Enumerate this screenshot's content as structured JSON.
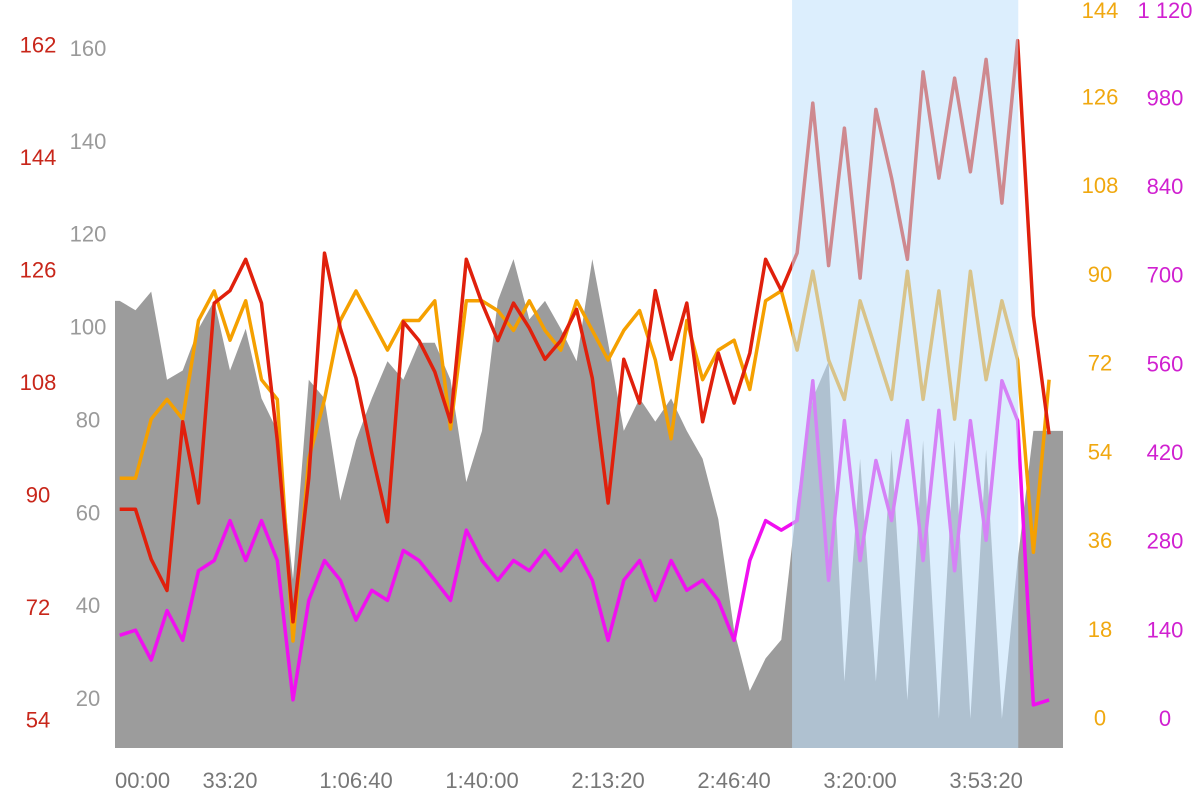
{
  "chart_data": {
    "type": "line",
    "x": [
      250,
      500,
      750,
      1000,
      1250,
      1500,
      1750,
      2000,
      2250,
      2500,
      2750,
      3000,
      3250,
      3500,
      3750,
      4000,
      4250,
      4500,
      4750,
      5000,
      5250,
      5500,
      5750,
      6000,
      6250,
      6500,
      6750,
      7000,
      7250,
      7500,
      7750,
      8000,
      8250,
      8500,
      8750,
      9000,
      9250,
      9500,
      9750,
      10000,
      10250,
      10500,
      10750,
      11000,
      11250,
      11500,
      11750,
      12000,
      12250,
      12500,
      12750,
      13000,
      13250,
      13500,
      13750,
      14000,
      14250,
      14500,
      14750,
      15000
    ],
    "xlim": [
      175,
      15220
    ],
    "xticks": [
      {
        "value": 0,
        "label": "00:00"
      },
      {
        "value": 2000,
        "label": "33:20"
      },
      {
        "value": 4000,
        "label": "1:06:40"
      },
      {
        "value": 6000,
        "label": "1:40:00"
      },
      {
        "value": 8000,
        "label": "2:13:20"
      },
      {
        "value": 10000,
        "label": "2:46:40"
      },
      {
        "value": 12000,
        "label": "3:20:00"
      },
      {
        "value": 14000,
        "label": "3:53:20"
      }
    ],
    "highlight": [
      10920,
      14510
    ],
    "axes": [
      {
        "ylim": [
          49.8,
          169.5
        ],
        "yticks": [
          54,
          72,
          90,
          108,
          126,
          144,
          162
        ],
        "color": "#c8261a"
      },
      {
        "ylim": [
          9.7,
          170.8
        ],
        "yticks": [
          20,
          40,
          60,
          80,
          100,
          120,
          140,
          160
        ],
        "color": "#9a9a9a"
      },
      {
        "ylim": [
          -5.7,
          146
        ],
        "yticks": [
          0,
          18,
          36,
          54,
          72,
          90,
          108,
          126,
          144
        ],
        "color": "#f0a810"
      },
      {
        "ylim": [
          -44,
          1137
        ],
        "yticks": [
          0,
          140,
          280,
          420,
          560,
          700,
          840,
          980,
          {
            "value": 1120,
            "label": "1 120"
          }
        ],
        "color": "#d020d0"
      }
    ],
    "series": [
      {
        "kind": "area",
        "axis": 1,
        "color": "#9c9c9c",
        "values": [
          106,
          104,
          108,
          89,
          91,
          100,
          106,
          91,
          100,
          85,
          78,
          46,
          89,
          85,
          63,
          76,
          85,
          93,
          89,
          97,
          97,
          89,
          67,
          78,
          106,
          115,
          102,
          106,
          100,
          93,
          115,
          97,
          78,
          85,
          80,
          85,
          78,
          72,
          59,
          35,
          22,
          29,
          33,
          63,
          85,
          93,
          24,
          72,
          24,
          74,
          20,
          76,
          16,
          76,
          16,
          74,
          16,
          50,
          78,
          78
        ]
      },
      {
        "kind": "line",
        "axis": 2,
        "color": "#f5a000",
        "values": [
          49,
          49,
          61,
          65,
          61,
          81,
          87,
          77,
          85,
          69,
          65,
          16,
          53,
          65,
          81,
          87,
          81,
          75,
          81,
          81,
          85,
          59,
          85,
          85,
          83,
          79,
          85,
          79,
          75,
          85,
          79,
          73,
          79,
          83,
          73,
          57,
          81,
          69,
          75,
          77,
          67,
          85,
          87,
          75,
          91,
          73,
          65,
          85,
          75,
          65,
          91,
          65,
          87,
          61,
          91,
          69,
          85,
          73,
          34,
          69
        ]
      },
      {
        "kind": "line",
        "axis": 3,
        "color": "#f010f0",
        "values": [
          134,
          142,
          95,
          173,
          126,
          236,
          252,
          315,
          252,
          315,
          252,
          32,
          189,
          252,
          221,
          158,
          205,
          189,
          268,
          252,
          221,
          189,
          300,
          252,
          221,
          252,
          236,
          268,
          236,
          268,
          221,
          126,
          221,
          252,
          189,
          252,
          205,
          221,
          189,
          126,
          252,
          315,
          300,
          315,
          536,
          221,
          473,
          252,
          410,
          315,
          473,
          252,
          489,
          236,
          473,
          284,
          536,
          473,
          24,
          32
        ]
      },
      {
        "kind": "line",
        "axis": 0,
        "color": "#e0200c",
        "values": [
          88,
          88,
          80,
          75,
          102,
          89,
          121,
          123,
          128,
          121,
          99,
          70,
          93,
          129,
          117,
          109,
          97,
          86,
          118,
          115,
          110,
          102,
          128,
          121,
          115,
          121,
          117,
          112,
          115,
          120,
          109,
          89,
          112,
          105,
          123,
          112,
          121,
          102,
          113,
          105,
          113,
          128,
          123,
          129,
          153,
          127,
          149,
          125,
          152,
          141,
          128,
          158,
          141,
          157,
          142,
          160,
          137,
          163,
          119,
          100
        ]
      }
    ]
  }
}
